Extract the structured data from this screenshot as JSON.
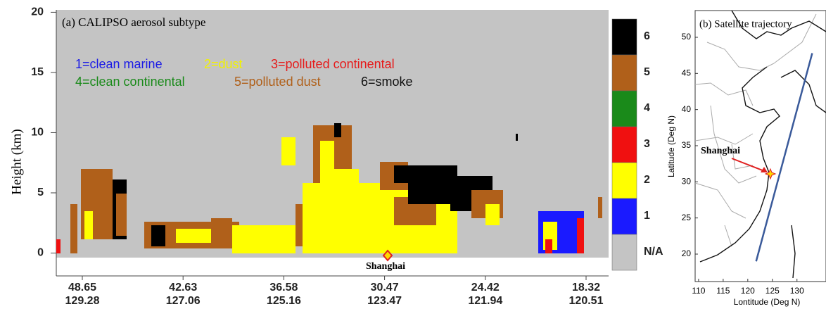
{
  "chart_data": [
    {
      "type": "curtain",
      "title": "(a) CALIPSO aerosol subtype",
      "y_label": "Height (km)",
      "ylim": [
        -1.9,
        20.2
      ],
      "yticks": [
        0,
        5,
        10,
        15,
        20
      ],
      "categories": [
        "48.65",
        "42.63",
        "36.58",
        "30.47",
        "24.42",
        "18.32"
      ],
      "categories2": [
        "129.28",
        "127.06",
        "125.16",
        "123.47",
        "121.94",
        "120.51"
      ],
      "legend": [
        {
          "label": "1=clean marine",
          "color": "#1a1ae6"
        },
        {
          "label": "2=dust",
          "color": "#f2f200"
        },
        {
          "label": "3=polluted continental",
          "color": "#e61a1a"
        },
        {
          "label": "4=clean continental",
          "color": "#1a8a1a"
        },
        {
          "label": "5=polluted dust",
          "color": "#b0601a"
        },
        {
          "label": "6=smoke",
          "color": "#111111"
        }
      ],
      "colorbar": {
        "labels": [
          "6",
          "5",
          "4",
          "3",
          "2",
          "1",
          "N/A"
        ],
        "colors": [
          "#000000",
          "#b0601a",
          "#1a8a1a",
          "#f01010",
          "#ffff00",
          "#1a1aff",
          "#c4c4c4"
        ]
      },
      "annotation": "Shanghai"
    },
    {
      "type": "map",
      "title": "(b) Satellite trajectory",
      "x_label": "Lontitude (Deg N)",
      "y_label": "Latitude (Deg N)",
      "xlim": [
        109.3,
        135.9
      ],
      "ylim": [
        16.2,
        53.7
      ],
      "xticks": [
        110,
        115,
        120,
        125,
        130
      ],
      "yticks": [
        20,
        25,
        30,
        35,
        40,
        45,
        50
      ],
      "series": [
        {
          "color": "#3a5a9a",
          "x": [
            121.7,
            133.1
          ],
          "y": [
            19.0,
            47.8
          ]
        }
      ],
      "point": {
        "x": 124.6,
        "y": 31.1
      },
      "annotation": "Shanghai"
    }
  ]
}
